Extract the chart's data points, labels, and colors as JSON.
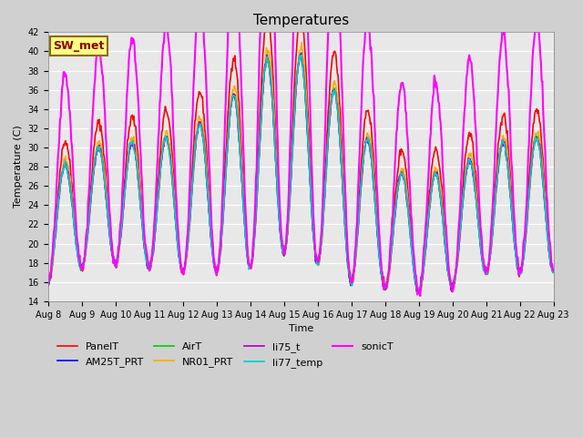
{
  "title": "Temperatures",
  "xlabel": "Time",
  "ylabel": "Temperature (C)",
  "ylim": [
    14,
    42
  ],
  "station_label": "SW_met",
  "xtick_labels": [
    "Aug 8",
    "Aug 9",
    "Aug 10",
    "Aug 11",
    "Aug 12",
    "Aug 13",
    "Aug 14",
    "Aug 15",
    "Aug 16",
    "Aug 17",
    "Aug 18",
    "Aug 19",
    "Aug 20",
    "Aug 21",
    "Aug 22",
    "Aug 23"
  ],
  "series": [
    {
      "name": "PanelT",
      "color": "#ff0000",
      "lw": 1.2
    },
    {
      "name": "AM25T_PRT",
      "color": "#0000ff",
      "lw": 1.2
    },
    {
      "name": "AirT",
      "color": "#00cc00",
      "lw": 1.2
    },
    {
      "name": "NR01_PRT",
      "color": "#ffaa00",
      "lw": 1.2
    },
    {
      "name": "li75_t",
      "color": "#aa00cc",
      "lw": 1.2
    },
    {
      "name": "li77_temp",
      "color": "#00cccc",
      "lw": 1.2
    },
    {
      "name": "sonicT",
      "color": "#ff00ff",
      "lw": 1.5
    }
  ],
  "bg_color": "#e8e8e8",
  "plot_bg": "#e8e8e8",
  "title_fontsize": 11,
  "axis_fontsize": 8,
  "legend_fontsize": 8
}
